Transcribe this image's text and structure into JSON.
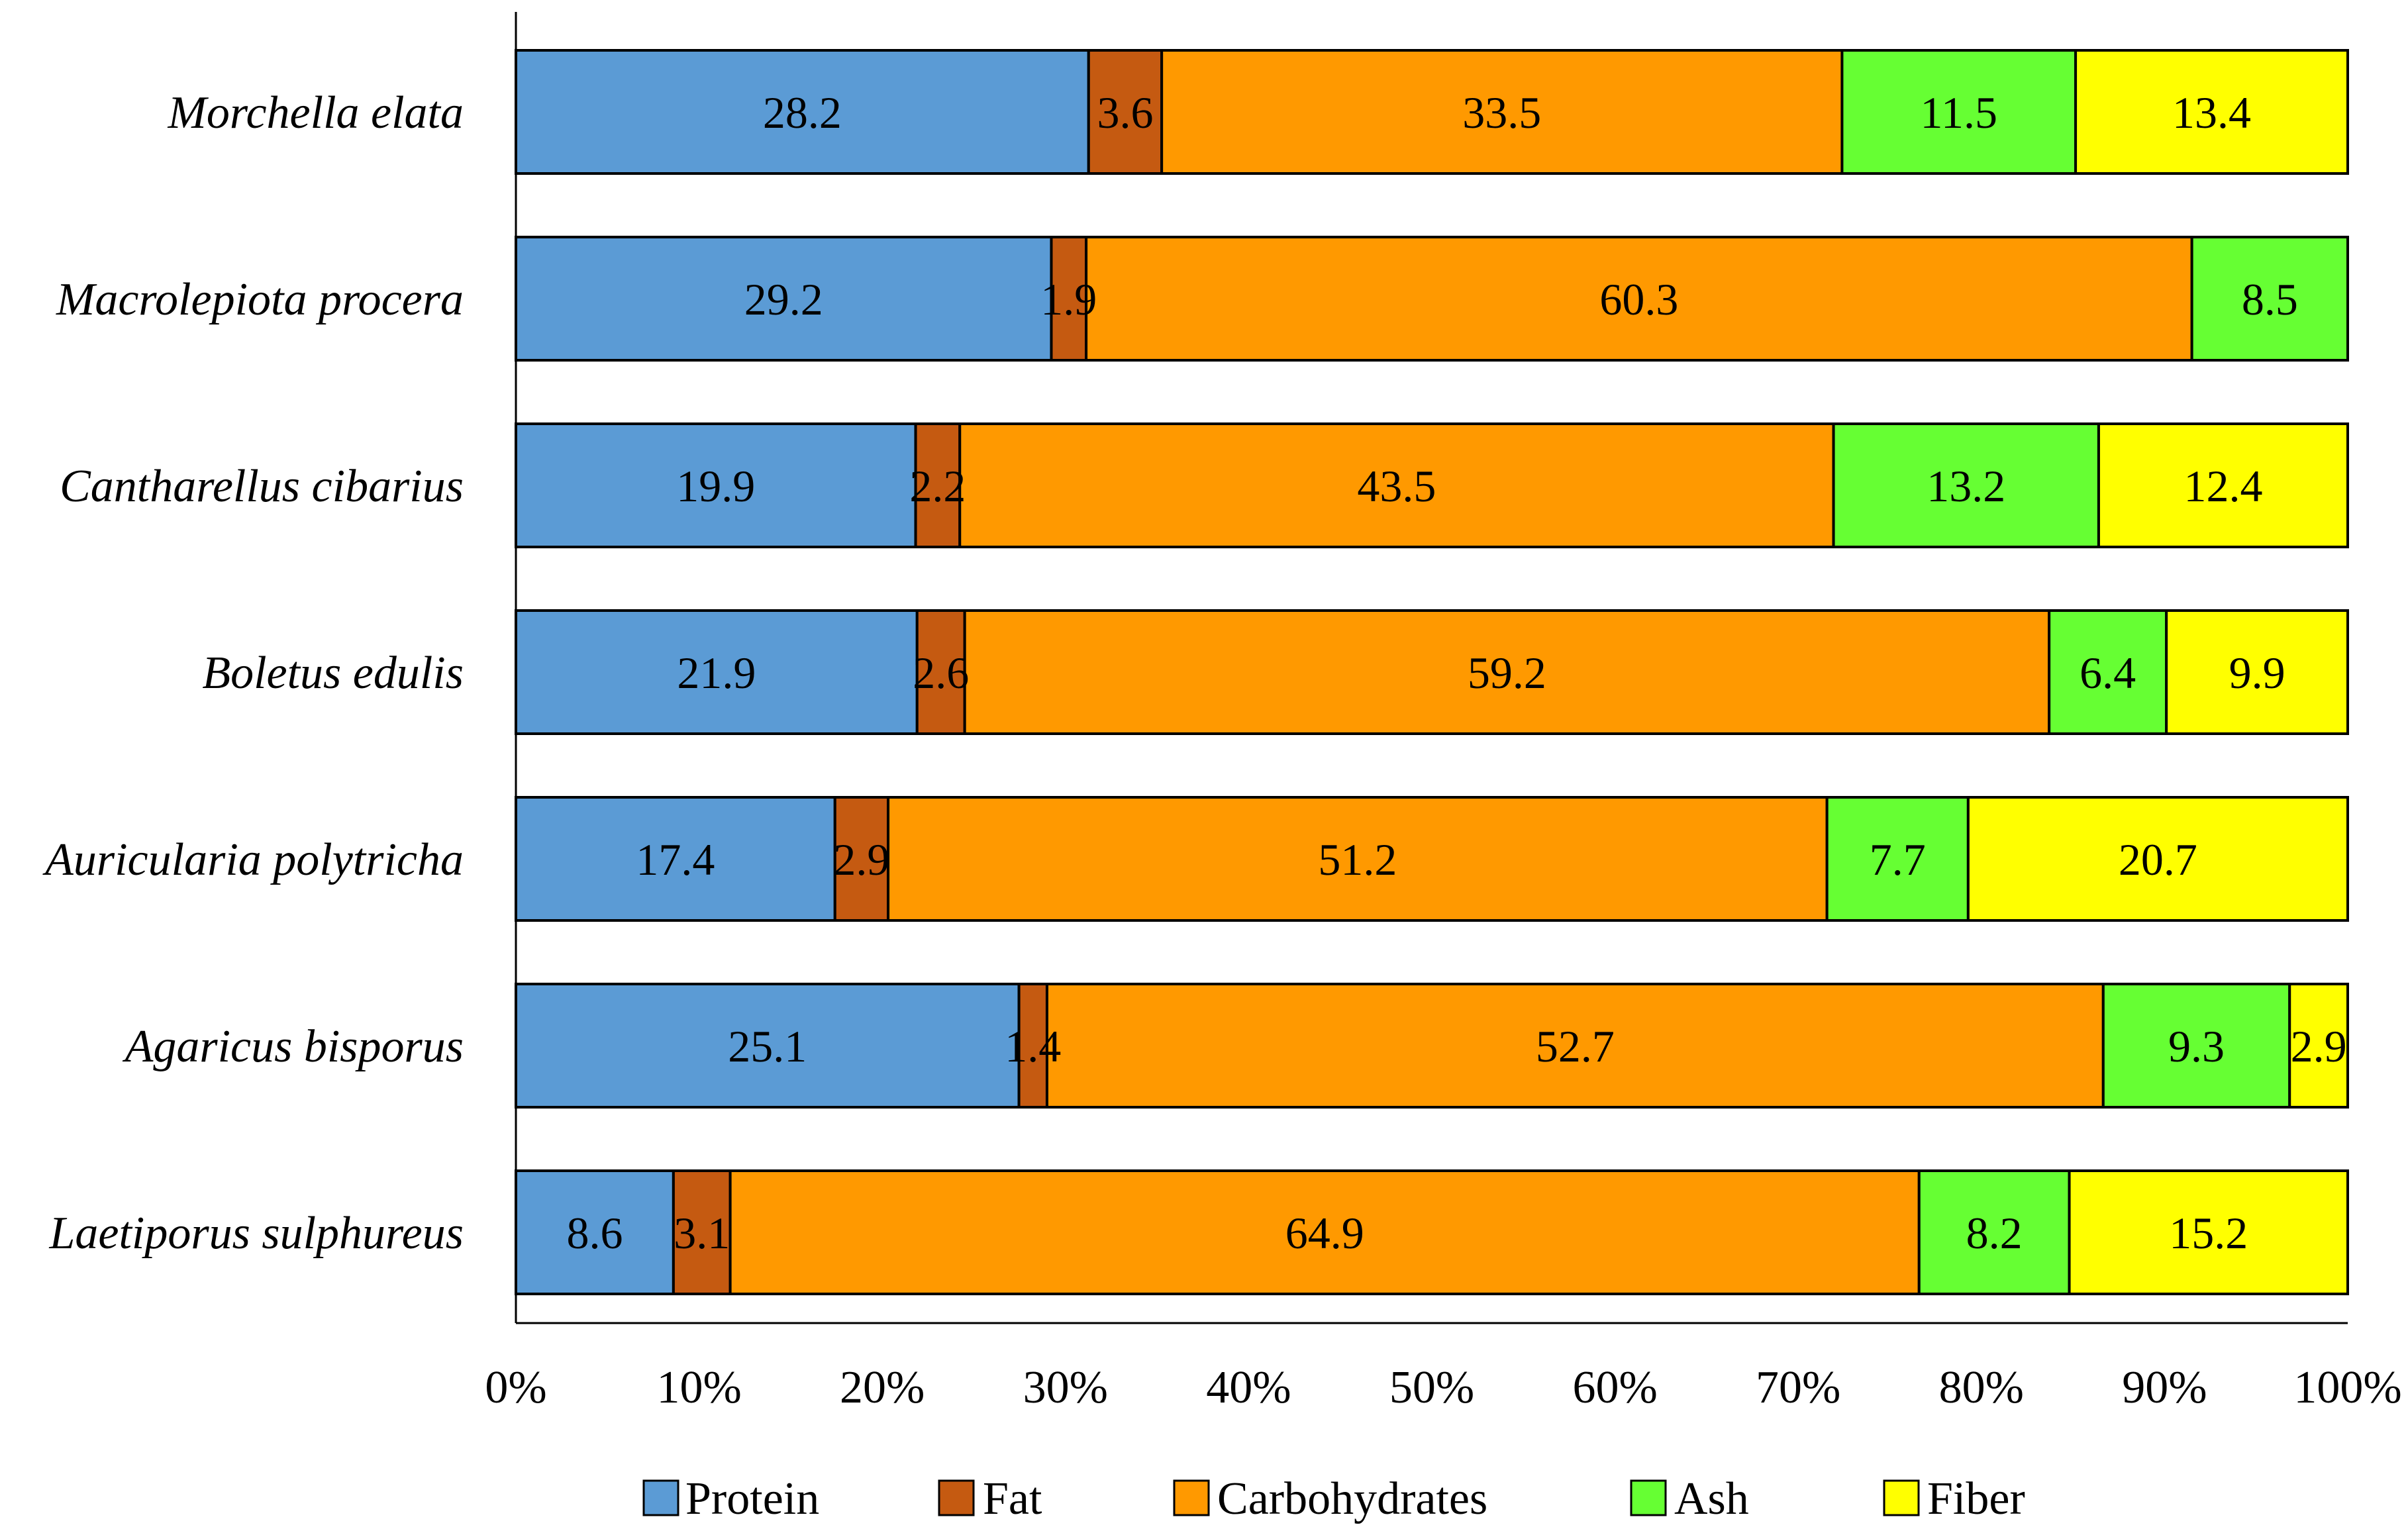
{
  "chart_data": {
    "type": "bar",
    "orientation": "horizontal",
    "stacked": "percent",
    "title": "",
    "xlabel": "",
    "ylabel": "",
    "xlim": [
      0,
      100
    ],
    "grid": false,
    "legend_position": "bottom",
    "categories": [
      "Morchella elata",
      "Macrolepiota procera",
      "Cantharellus cibarius",
      "Boletus edulis",
      "Auricularia polytricha",
      "Agaricus bisporus",
      "Laetiporus sulphureus"
    ],
    "series": [
      {
        "name": "Protein",
        "color": "#5B9BD5",
        "values": [
          28.2,
          29.2,
          19.9,
          21.9,
          17.4,
          25.1,
          8.6
        ]
      },
      {
        "name": "Fat",
        "color": "#C55A11",
        "values": [
          3.6,
          1.9,
          2.2,
          2.6,
          2.9,
          1.4,
          3.1
        ]
      },
      {
        "name": "Carbohydrates",
        "color": "#FF9900",
        "values": [
          33.5,
          60.3,
          43.5,
          59.2,
          51.2,
          52.7,
          64.9
        ]
      },
      {
        "name": "Ash",
        "color": "#66FF33",
        "values": [
          11.5,
          8.5,
          13.2,
          6.4,
          7.7,
          9.3,
          8.2
        ]
      },
      {
        "name": "Fiber",
        "color": "#FFFF00",
        "values": [
          13.4,
          null,
          12.4,
          9.9,
          20.7,
          2.9,
          15.2
        ]
      }
    ],
    "x_tick_labels": [
      "0%",
      "10%",
      "20%",
      "30%",
      "40%",
      "50%",
      "60%",
      "70%",
      "80%",
      "90%",
      "100%"
    ]
  }
}
